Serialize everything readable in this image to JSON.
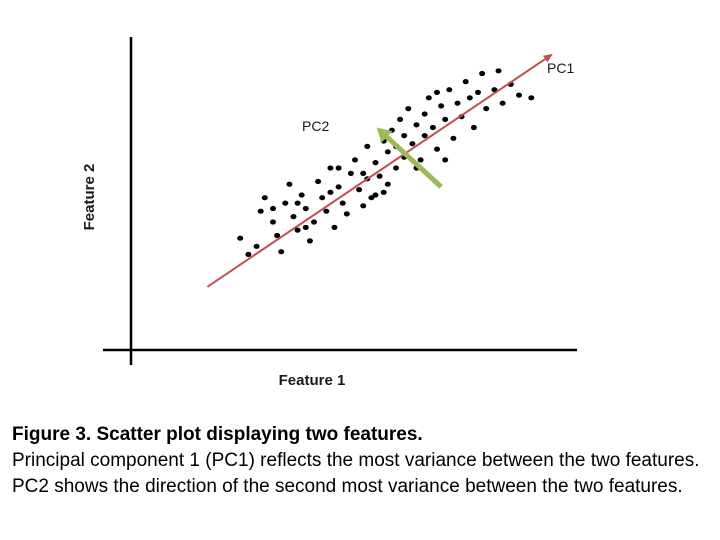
{
  "chart_data": {
    "type": "scatter",
    "title": "",
    "xlabel": "Feature 1",
    "ylabel": "Feature 2",
    "xlim": [
      0,
      100
    ],
    "ylim": [
      0,
      100
    ],
    "grid": false,
    "axis_ticks": false,
    "point_color": "#000000",
    "points": [
      [
        22,
        34
      ],
      [
        26,
        31
      ],
      [
        24,
        28
      ],
      [
        27,
        44
      ],
      [
        28,
        49
      ],
      [
        30,
        40
      ],
      [
        31,
        35
      ],
      [
        32,
        29
      ],
      [
        33,
        47
      ],
      [
        34,
        54
      ],
      [
        35,
        42
      ],
      [
        36,
        37
      ],
      [
        37,
        50
      ],
      [
        38,
        45
      ],
      [
        39,
        33
      ],
      [
        40,
        40
      ],
      [
        41,
        55
      ],
      [
        42,
        49
      ],
      [
        43,
        44
      ],
      [
        44,
        60
      ],
      [
        45,
        38
      ],
      [
        46,
        53
      ],
      [
        47,
        47
      ],
      [
        48,
        43
      ],
      [
        49,
        58
      ],
      [
        50,
        63
      ],
      [
        51,
        52
      ],
      [
        52,
        46
      ],
      [
        53,
        68
      ],
      [
        53,
        56
      ],
      [
        54,
        49
      ],
      [
        55,
        62
      ],
      [
        56,
        57
      ],
      [
        57,
        70
      ],
      [
        57,
        51
      ],
      [
        58,
        66
      ],
      [
        59,
        74
      ],
      [
        60,
        60
      ],
      [
        61,
        78
      ],
      [
        62,
        72
      ],
      [
        62,
        64
      ],
      [
        63,
        82
      ],
      [
        64,
        69
      ],
      [
        65,
        76
      ],
      [
        66,
        63
      ],
      [
        67,
        80
      ],
      [
        67,
        72
      ],
      [
        68,
        86
      ],
      [
        69,
        75
      ],
      [
        70,
        67
      ],
      [
        71,
        83
      ],
      [
        72,
        78
      ],
      [
        73,
        89
      ],
      [
        74,
        71
      ],
      [
        75,
        84
      ],
      [
        76,
        79
      ],
      [
        77,
        92
      ],
      [
        78,
        86
      ],
      [
        79,
        75
      ],
      [
        80,
        88
      ],
      [
        81,
        95
      ],
      [
        82,
        82
      ],
      [
        84,
        89
      ],
      [
        85,
        96
      ],
      [
        86,
        84
      ],
      [
        88,
        91
      ],
      [
        90,
        87
      ],
      [
        93,
        86
      ],
      [
        46,
        60
      ],
      [
        52,
        58
      ],
      [
        58,
        54
      ],
      [
        60,
        68
      ],
      [
        65,
        60
      ],
      [
        70,
        88
      ],
      [
        72,
        63
      ],
      [
        55,
        50
      ],
      [
        44,
        51
      ],
      [
        38,
        38
      ],
      [
        30,
        45
      ],
      [
        36,
        47
      ]
    ],
    "components": [
      {
        "name": "PC1",
        "from": [
          14,
          16
        ],
        "to": [
          98,
          102
        ],
        "color": "#c0504d"
      },
      {
        "name": "PC2",
        "from": [
          71,
          53
        ],
        "to": [
          56,
          74
        ],
        "color": "#9bbb59"
      }
    ]
  },
  "caption": {
    "title": "Figure 3. Scatter plot displaying two features.",
    "body": "Principal component 1 (PC1) reflects the most  variance between the two features. PC2 shows the direction of the second most variance between the two features."
  }
}
